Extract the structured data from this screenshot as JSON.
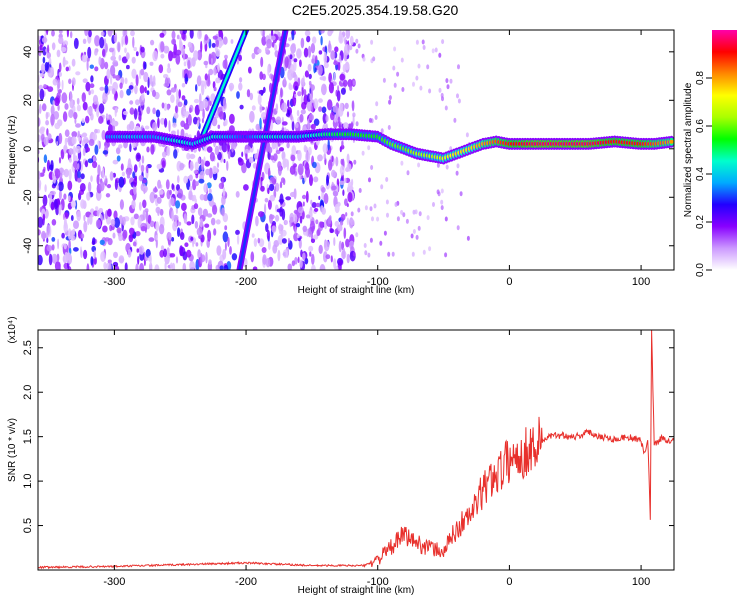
{
  "title": "C2E5.2025.354.19.58.G20",
  "chart_data": [
    {
      "type": "heatmap",
      "xlabel": "Height of straight line (km)",
      "ylabel": "Frequency (Hz)",
      "xlim": [
        -358,
        125
      ],
      "ylim": [
        -50,
        49
      ],
      "xticks": [
        -300,
        -200,
        -100,
        0,
        100
      ],
      "yticks": [
        -40,
        -20,
        0,
        20,
        40
      ],
      "colorbar": {
        "label": "Normalized spectral amplitude",
        "range": [
          0,
          1
        ],
        "ticks": [
          "0.0",
          "0.2",
          "0.4",
          "0.6",
          "0.8"
        ],
        "tick_values": [
          0,
          0.2,
          0.4,
          0.6,
          0.8
        ],
        "colors": [
          "#ffffff",
          "#cc99ff",
          "#8800ff",
          "#2200ff",
          "#00aaff",
          "#00ffcc",
          "#00ff00",
          "#aaff00",
          "#ffff00",
          "#ff8800",
          "#ff0000",
          "#ff00aa"
        ]
      },
      "ridge": [
        {
          "x": -305,
          "y": 5,
          "a": 0.35
        },
        {
          "x": -290,
          "y": 5,
          "a": 0.4
        },
        {
          "x": -270,
          "y": 5,
          "a": 0.35
        },
        {
          "x": -250,
          "y": 3,
          "a": 0.45
        },
        {
          "x": -240,
          "y": 2,
          "a": 0.4
        },
        {
          "x": -225,
          "y": 5,
          "a": 0.45
        },
        {
          "x": -200,
          "y": 5,
          "a": 0.3
        },
        {
          "x": -185,
          "y": 5,
          "a": 0.45
        },
        {
          "x": -160,
          "y": 5,
          "a": 0.4
        },
        {
          "x": -140,
          "y": 6,
          "a": 0.5
        },
        {
          "x": -120,
          "y": 6,
          "a": 0.55
        },
        {
          "x": -100,
          "y": 5,
          "a": 0.55
        },
        {
          "x": -90,
          "y": 2,
          "a": 0.6
        },
        {
          "x": -80,
          "y": 0,
          "a": 0.6
        },
        {
          "x": -70,
          "y": -2,
          "a": 0.65
        },
        {
          "x": -60,
          "y": -3,
          "a": 0.65
        },
        {
          "x": -50,
          "y": -4,
          "a": 0.7
        },
        {
          "x": -40,
          "y": -2,
          "a": 0.75
        },
        {
          "x": -30,
          "y": 0,
          "a": 0.75
        },
        {
          "x": -20,
          "y": 2,
          "a": 0.8
        },
        {
          "x": -10,
          "y": 3,
          "a": 0.85
        },
        {
          "x": 0,
          "y": 2,
          "a": 0.9
        },
        {
          "x": 20,
          "y": 2,
          "a": 0.95
        },
        {
          "x": 40,
          "y": 2,
          "a": 0.95
        },
        {
          "x": 60,
          "y": 2,
          "a": 0.95
        },
        {
          "x": 80,
          "y": 3,
          "a": 0.9
        },
        {
          "x": 100,
          "y": 2,
          "a": 0.9
        },
        {
          "x": 110,
          "y": 2,
          "a": 0.85
        },
        {
          "x": 125,
          "y": 3,
          "a": 0.8
        }
      ],
      "diagonals": [
        {
          "from": [
            -233,
            5
          ],
          "to": [
            -200,
            49
          ],
          "a": 0.45
        },
        {
          "from": [
            -205,
            -50
          ],
          "to": [
            -170,
            49
          ],
          "a": 0.3
        }
      ]
    },
    {
      "type": "line",
      "xlabel": "Height of straight line (km)",
      "ylabel": "SNR (10 * v/v)",
      "y_multiplier": "(x10⁴)",
      "xlim": [
        -358,
        125
      ],
      "ylim": [
        0,
        2.7
      ],
      "xticks": [
        -300,
        -200,
        -100,
        0,
        100
      ],
      "yticks": [
        "0.5",
        "1.0",
        "1.5",
        "2.0",
        "2.5"
      ],
      "ytick_values": [
        0.5,
        1.0,
        1.5,
        2.0,
        2.5
      ],
      "color": "#e8302c",
      "x": [
        -358,
        -300,
        -250,
        -200,
        -150,
        -110,
        -100,
        -90,
        -80,
        -70,
        -60,
        -50,
        -45,
        -40,
        -35,
        -30,
        -25,
        -20,
        -15,
        -10,
        -5,
        0,
        10,
        20,
        30,
        40,
        50,
        60,
        70,
        80,
        90,
        100,
        103,
        105,
        107,
        108,
        110,
        115,
        125
      ],
      "y": [
        0.03,
        0.04,
        0.06,
        0.08,
        0.05,
        0.05,
        0.12,
        0.25,
        0.4,
        0.3,
        0.25,
        0.2,
        0.35,
        0.45,
        0.55,
        0.6,
        0.75,
        0.9,
        1.0,
        1.1,
        1.15,
        1.25,
        1.3,
        1.42,
        1.5,
        1.52,
        1.5,
        1.55,
        1.5,
        1.47,
        1.5,
        1.45,
        1.3,
        1.5,
        0.6,
        2.7,
        1.4,
        1.48,
        1.45
      ]
    }
  ]
}
